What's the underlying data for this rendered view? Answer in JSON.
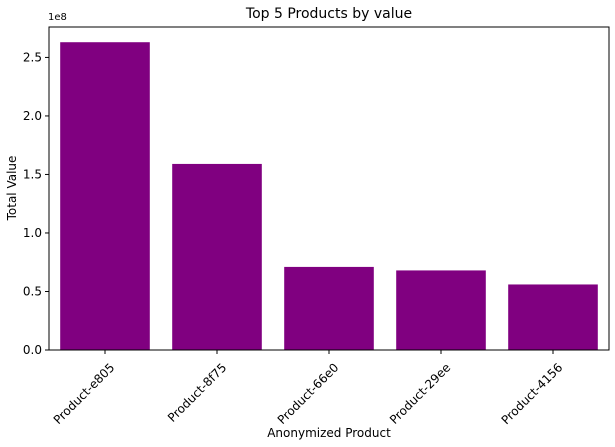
{
  "chart_data": {
    "type": "bar",
    "title": "Top 5 Products by value",
    "xlabel": "Anonymized Product",
    "ylabel": "Total Value",
    "y_multiplier": "1e8",
    "categories": [
      "Product-e805",
      "Product-8f75",
      "Product-66e0",
      "Product-29ee",
      "Product-4156"
    ],
    "values": [
      263000000,
      159000000,
      71000000,
      68000000,
      56000000
    ],
    "ylim": [
      0,
      276000000
    ],
    "yticks": [
      {
        "value": 0,
        "label": "0.0"
      },
      {
        "value": 50000000,
        "label": "0.5"
      },
      {
        "value": 100000000,
        "label": "1.0"
      },
      {
        "value": 150000000,
        "label": "1.5"
      },
      {
        "value": 200000000,
        "label": "2.0"
      },
      {
        "value": 250000000,
        "label": "2.5"
      }
    ],
    "bar_color": "#800080",
    "grid": false,
    "legend": "none"
  }
}
